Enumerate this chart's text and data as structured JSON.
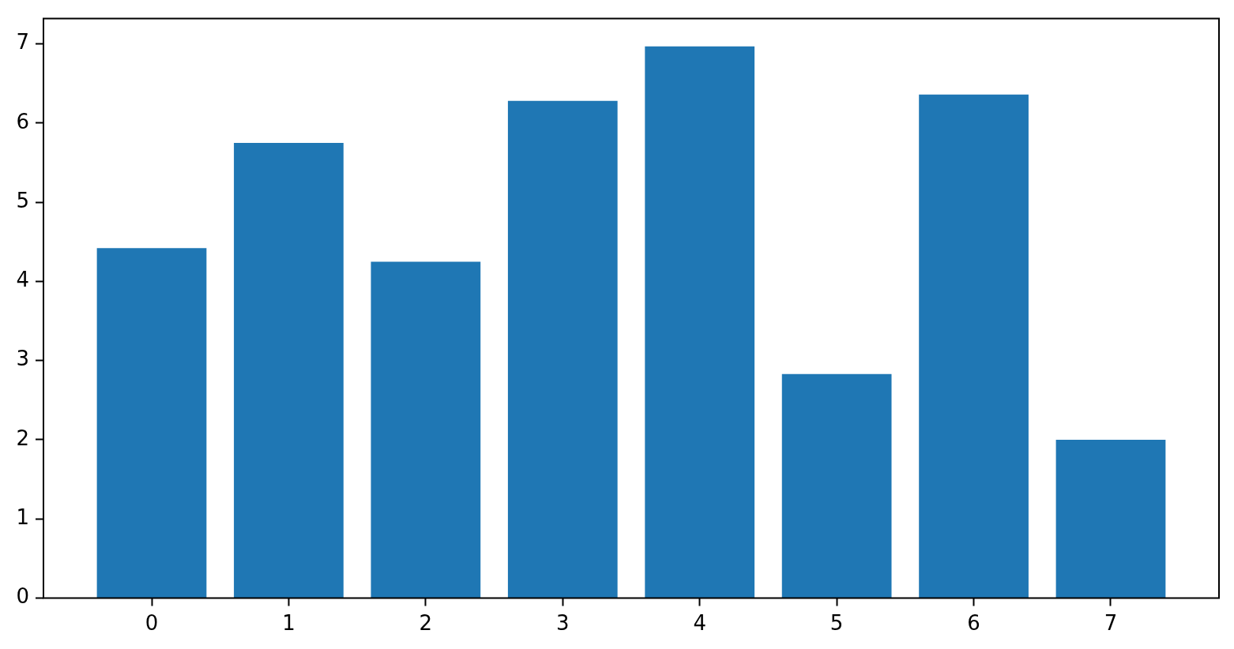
{
  "chart_data": {
    "type": "bar",
    "x": [
      0,
      1,
      2,
      3,
      4,
      5,
      6,
      7
    ],
    "values": [
      4.42,
      5.75,
      4.25,
      6.28,
      6.97,
      2.83,
      6.36,
      2.0
    ],
    "color": "#1f77b4",
    "xlim": [
      -0.79,
      7.79
    ],
    "xticks": [
      0,
      1,
      2,
      3,
      4,
      5,
      6,
      7
    ],
    "ylim": [
      0,
      7.32
    ],
    "yticks": [
      0,
      1,
      2,
      3,
      4,
      5,
      6,
      7
    ]
  }
}
